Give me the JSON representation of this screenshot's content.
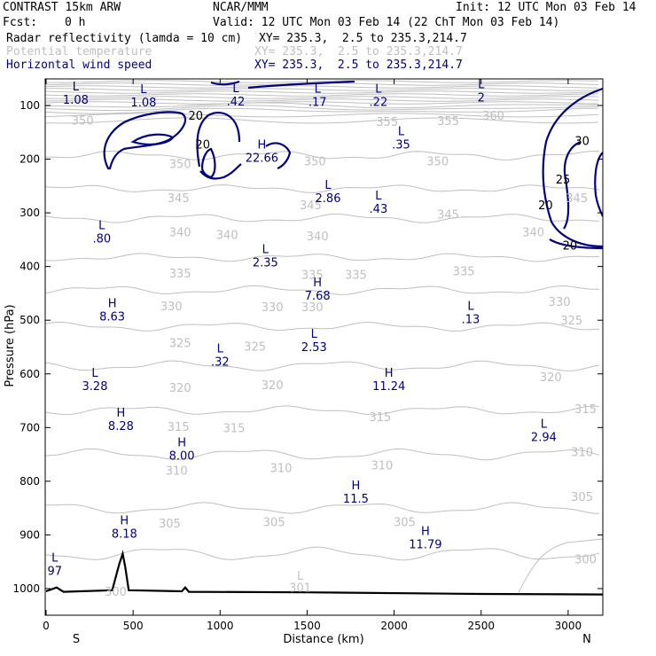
{
  "header": {
    "model": "CONTRAST 15km ARW",
    "org": "NCAR/MMM",
    "init": "Init: 12 UTC Mon 03 Feb 14",
    "fcst_label": "Fcst:",
    "fcst_value": "0 h",
    "valid": "Valid: 12 UTC Mon 03 Feb 14 (22 ChT Mon 03 Feb 14)",
    "fields": [
      {
        "name": "Radar reflectivity (lamda = 10 cm)",
        "xy": "XY= 235.3,  2.5 to 235.3,214.7",
        "color": "#000000"
      },
      {
        "name": "Potential temperature",
        "xy": "XY= 235.3,  2.5 to 235.3,214.7",
        "color": "#bfbfbf"
      },
      {
        "name": "Horizontal wind speed",
        "xy": "XY= 235.3,  2.5 to 235.3,214.7",
        "color": "#000080"
      }
    ]
  },
  "chart_data": {
    "type": "contour-cross-section",
    "xlabel": "Distance (km)",
    "ylabel": "Pressure (hPa)",
    "xlim": [
      0,
      3200
    ],
    "ylim": [
      1050,
      60
    ],
    "x_ticks": [
      0,
      500,
      1000,
      1500,
      2000,
      2500,
      3000
    ],
    "y_ticks": [
      100,
      200,
      300,
      400,
      500,
      600,
      700,
      800,
      900,
      1000
    ],
    "end_labels": {
      "left": "S",
      "right": "N"
    },
    "theta_contours": [
      {
        "value": 350,
        "p": 193,
        "amp": 6
      },
      {
        "value": 345,
        "p": 255,
        "amp": 5
      },
      {
        "value": 340,
        "p": 310,
        "amp": 6
      },
      {
        "value": 335,
        "p": 383,
        "amp": 5
      },
      {
        "value": 330,
        "p": 444,
        "amp": 6
      },
      {
        "value": 325,
        "p": 512,
        "amp": 6
      },
      {
        "value": 320,
        "p": 585,
        "amp": 7
      },
      {
        "value": 315,
        "p": 668,
        "amp": 6
      },
      {
        "value": 310,
        "p": 750,
        "amp": 8
      },
      {
        "value": 305,
        "p": 850,
        "amp": 8
      },
      {
        "value": 300,
        "p": 935,
        "amp": 10
      }
    ],
    "theta_labels": [
      {
        "text": "355",
        "x": 1960,
        "p": 130
      },
      {
        "text": "355",
        "x": 2310,
        "p": 128
      },
      {
        "text": "360",
        "x": 2570,
        "p": 118
      },
      {
        "text": "350",
        "x": 210,
        "p": 127
      },
      {
        "text": "350",
        "x": 1545,
        "p": 203
      },
      {
        "text": "350",
        "x": 2250,
        "p": 203
      },
      {
        "text": "350",
        "x": 770,
        "p": 208
      },
      {
        "text": "345",
        "x": 760,
        "p": 272
      },
      {
        "text": "345",
        "x": 1520,
        "p": 285
      },
      {
        "text": "345",
        "x": 2310,
        "p": 302
      },
      {
        "text": "345",
        "x": 3050,
        "p": 272
      },
      {
        "text": "340",
        "x": 770,
        "p": 335
      },
      {
        "text": "340",
        "x": 1040,
        "p": 340
      },
      {
        "text": "340",
        "x": 1560,
        "p": 343
      },
      {
        "text": "340",
        "x": 2800,
        "p": 335
      },
      {
        "text": "335",
        "x": 770,
        "p": 412
      },
      {
        "text": "335",
        "x": 1530,
        "p": 415
      },
      {
        "text": "335",
        "x": 1780,
        "p": 415
      },
      {
        "text": "335",
        "x": 2400,
        "p": 408
      },
      {
        "text": "330",
        "x": 720,
        "p": 473
      },
      {
        "text": "330",
        "x": 1300,
        "p": 475
      },
      {
        "text": "330",
        "x": 1530,
        "p": 475
      },
      {
        "text": "330",
        "x": 2950,
        "p": 465
      },
      {
        "text": "325",
        "x": 770,
        "p": 542
      },
      {
        "text": "325",
        "x": 1200,
        "p": 548
      },
      {
        "text": "325",
        "x": 3020,
        "p": 500
      },
      {
        "text": "320",
        "x": 770,
        "p": 625
      },
      {
        "text": "320",
        "x": 1300,
        "p": 620
      },
      {
        "text": "320",
        "x": 2900,
        "p": 605
      },
      {
        "text": "315",
        "x": 760,
        "p": 698
      },
      {
        "text": "315",
        "x": 1080,
        "p": 700
      },
      {
        "text": "315",
        "x": 1920,
        "p": 680
      },
      {
        "text": "315",
        "x": 3100,
        "p": 665
      },
      {
        "text": "310",
        "x": 750,
        "p": 780
      },
      {
        "text": "310",
        "x": 1350,
        "p": 775
      },
      {
        "text": "310",
        "x": 1930,
        "p": 770
      },
      {
        "text": "310",
        "x": 3080,
        "p": 745
      },
      {
        "text": "305",
        "x": 710,
        "p": 878
      },
      {
        "text": "305",
        "x": 1310,
        "p": 875
      },
      {
        "text": "305",
        "x": 2060,
        "p": 875
      },
      {
        "text": "305",
        "x": 3080,
        "p": 828
      },
      {
        "text": "300",
        "x": 3100,
        "p": 945
      },
      {
        "text": "300",
        "x": 400,
        "p": 1005
      },
      {
        "text": "301",
        "x": 1460,
        "p": 998
      },
      {
        "text": "L",
        "x": 1460,
        "p": 975
      }
    ],
    "wind_extrema": [
      {
        "type": "L",
        "value": "1.08",
        "x": 170,
        "p": 72
      },
      {
        "type": "L",
        "value": "1.08",
        "x": 560,
        "p": 77
      },
      {
        "type": "L",
        "value": ".42",
        "x": 1090,
        "p": 75
      },
      {
        "type": "L",
        "value": ".17",
        "x": 1560,
        "p": 76
      },
      {
        "type": "L",
        "value": ".22",
        "x": 1910,
        "p": 76
      },
      {
        "type": "L",
        "value": "2",
        "x": 2500,
        "p": 68
      },
      {
        "type": "L",
        "value": ".35",
        "x": 2040,
        "p": 155
      },
      {
        "type": "H",
        "value": "22.66",
        "x": 1240,
        "p": 180
      },
      {
        "type": "L",
        "value": "2.86",
        "x": 1620,
        "p": 255
      },
      {
        "type": "L",
        "value": ".43",
        "x": 1910,
        "p": 275
      },
      {
        "type": "L",
        "value": ".80",
        "x": 320,
        "p": 330
      },
      {
        "type": "L",
        "value": "2.35",
        "x": 1260,
        "p": 375
      },
      {
        "type": "H",
        "value": "7.68",
        "x": 1560,
        "p": 437
      },
      {
        "type": "H",
        "value": "8.63",
        "x": 380,
        "p": 476
      },
      {
        "type": "L",
        "value": ".13",
        "x": 2440,
        "p": 481
      },
      {
        "type": "L",
        "value": "2.53",
        "x": 1540,
        "p": 533
      },
      {
        "type": "L",
        "value": ".32",
        "x": 1000,
        "p": 560
      },
      {
        "type": "L",
        "value": "3.28",
        "x": 280,
        "p": 605
      },
      {
        "type": "H",
        "value": "11.24",
        "x": 1970,
        "p": 605
      },
      {
        "type": "H",
        "value": "8.28",
        "x": 430,
        "p": 680
      },
      {
        "type": "L",
        "value": "2.94",
        "x": 2860,
        "p": 700
      },
      {
        "type": "H",
        "value": "8.00",
        "x": 780,
        "p": 735
      },
      {
        "type": "H",
        "value": "11.5",
        "x": 1780,
        "p": 815
      },
      {
        "type": "H",
        "value": "8.18",
        "x": 450,
        "p": 880
      },
      {
        "type": "H",
        "value": "11.79",
        "x": 2180,
        "p": 900
      },
      {
        "type": "L",
        "value": "97",
        "x": 50,
        "p": 950
      }
    ],
    "wind_contour_labels": [
      {
        "text": "20",
        "x": 860,
        "p": 118
      },
      {
        "text": "20",
        "x": 900,
        "p": 172
      },
      {
        "text": "20",
        "x": 2870,
        "p": 285
      },
      {
        "text": "20",
        "x": 3010,
        "p": 360
      },
      {
        "text": "25",
        "x": 2970,
        "p": 237
      },
      {
        "text": "30",
        "x": 3080,
        "p": 165
      }
    ],
    "terrain_pressure": [
      [
        0,
        1005
      ],
      [
        60,
        998
      ],
      [
        100,
        1006
      ],
      [
        380,
        1003
      ],
      [
        420,
        955
      ],
      [
        440,
        935
      ],
      [
        455,
        960
      ],
      [
        475,
        1003
      ],
      [
        780,
        1005
      ],
      [
        800,
        998
      ],
      [
        820,
        1006
      ],
      [
        1500,
        1007
      ],
      [
        2500,
        1010
      ],
      [
        3200,
        1011
      ]
    ]
  },
  "colors": {
    "theta": "#bfbfbf",
    "wind": "#000080",
    "radar": "#000000",
    "frame": "#000000"
  }
}
